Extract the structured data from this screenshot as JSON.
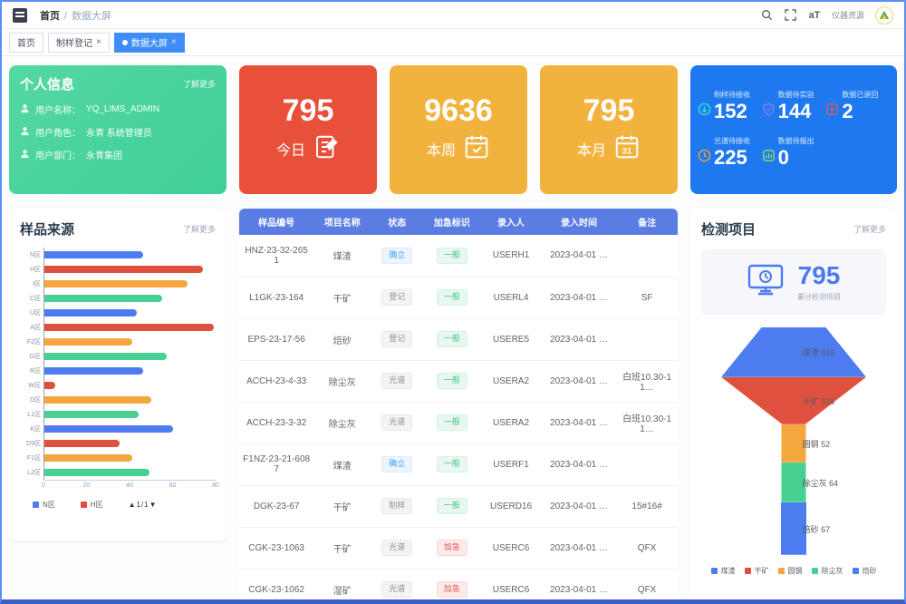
{
  "header": {
    "breadcrumb": {
      "root": "首页",
      "separator": "/",
      "current": "数据大屏"
    },
    "icons": [
      "menu-icon",
      "search-icon",
      "fullscreen-icon",
      "font-size-icon",
      "avatar-logo"
    ],
    "font_size_glyph": "aT",
    "right_text": "仪器资源"
  },
  "tabs": [
    {
      "label": "首页",
      "active": false,
      "closable": false
    },
    {
      "label": "制样登记",
      "active": false,
      "closable": true
    },
    {
      "label": "数据大屏",
      "active": true,
      "closable": true
    }
  ],
  "profile_card": {
    "title": "个人信息",
    "more": "了解更多",
    "items": [
      {
        "icon": "user-icon",
        "label": "用户名称",
        "sep": "：",
        "value": "YQ_LIMS_ADMIN"
      },
      {
        "icon": "role-icon",
        "label": "用户角色",
        "sep": "：",
        "value": "永青 系统管理员"
      },
      {
        "icon": "dept-icon",
        "label": "用户部门",
        "sep": "：",
        "value": "永青集团"
      }
    ]
  },
  "summary_cards": [
    {
      "value": "795",
      "label": "今日",
      "color": "#e8503a",
      "icon": "edit-note-icon"
    },
    {
      "value": "9636",
      "label": "本周",
      "color": "#f2b23e",
      "icon": "calendar-check-icon"
    },
    {
      "value": "795",
      "label": "本月",
      "color": "#f2b23e",
      "icon": "calendar-31-icon"
    }
  ],
  "stats_panel": {
    "bg_color": "#1e79f0",
    "items": [
      {
        "label": "制样待接收",
        "value": "152",
        "icon": "receive-circle-icon",
        "icon_color": "#35e0c8"
      },
      {
        "label": "数据待实验",
        "value": "144",
        "icon": "shield-icon",
        "icon_color": "#8a7af0"
      },
      {
        "label": "数据已退回",
        "value": "2",
        "icon": "return-square-icon",
        "icon_color": "#e05a5a"
      },
      {
        "label": "光谱待接收",
        "value": "225",
        "icon": "clock-icon",
        "icon_color": "#f0a23c"
      },
      {
        "label": "数据待报出",
        "value": "0",
        "icon": "report-chart-icon",
        "icon_color": "#8fdc5f"
      }
    ]
  },
  "sample_source": {
    "title": "样品来源",
    "more": "了解更多"
  },
  "test_projects": {
    "title": "检测项目",
    "more": "了解更多",
    "total": "795",
    "total_label": "累计检测项目",
    "monitor_icon": "monitor-clock-icon"
  },
  "chart_data": [
    {
      "type": "bar",
      "orientation": "horizontal",
      "title": "样品来源",
      "categories": [
        "N区",
        "H区",
        "I区",
        "C区",
        "U区",
        "A区",
        "F2区",
        "G区",
        "R区",
        "W区",
        "D区",
        "L1区",
        "K区",
        "D9区",
        "F1区",
        "L2区"
      ],
      "values": [
        46,
        74,
        67,
        55,
        43,
        79,
        41,
        57,
        46,
        5,
        50,
        44,
        60,
        35,
        41,
        49
      ],
      "xlim": [
        0,
        80
      ],
      "xticks": [
        0,
        20,
        40,
        60,
        80
      ],
      "bar_colors": [
        "#4d7cf0",
        "#e0503e",
        "#f5a73d",
        "#47d092"
      ],
      "legend": [
        {
          "label": "N区",
          "color": "#4d7cf0"
        },
        {
          "label": "H区",
          "color": "#e0503e"
        }
      ],
      "pager": "▲1/1▼",
      "grid": false,
      "legend_position": "bottom"
    },
    {
      "type": "funnel",
      "title": "检测项目",
      "categories": [
        "煤渣",
        "干矿",
        "圆钢",
        "除尘灰",
        "焙砂"
      ],
      "values": [
        916,
        376,
        52,
        64,
        67
      ],
      "colors": [
        "#4d7cf0",
        "#e0503e",
        "#f5a73d",
        "#47d092",
        "#4d7cf0"
      ],
      "legend_position": "bottom"
    }
  ],
  "table": {
    "headers": [
      "样品编号",
      "项目名称",
      "状态",
      "加急标识",
      "录入人",
      "录入时间",
      "备注"
    ],
    "rows": [
      {
        "code": "HNZ-23-32-2651",
        "name": "煤渣",
        "status": {
          "text": "确立",
          "type": "primary"
        },
        "urgent": {
          "text": "一般",
          "type": "success"
        },
        "user": "USERH1",
        "time": "2023-04-01 …",
        "remark": ""
      },
      {
        "code": "L1GK-23-164",
        "name": "干矿",
        "status": {
          "text": "登记",
          "type": "default"
        },
        "urgent": {
          "text": "一般",
          "type": "success"
        },
        "user": "USERL4",
        "time": "2023-04-01 …",
        "remark": "SF"
      },
      {
        "code": "EPS-23-17-56",
        "name": "焙砂",
        "status": {
          "text": "登记",
          "type": "default"
        },
        "urgent": {
          "text": "一般",
          "type": "success"
        },
        "user": "USERE5",
        "time": "2023-04-01 …",
        "remark": ""
      },
      {
        "code": "ACCH-23-4-33",
        "name": "除尘灰",
        "status": {
          "text": "光谱",
          "type": "default"
        },
        "urgent": {
          "text": "一般",
          "type": "success"
        },
        "user": "USERA2",
        "time": "2023-04-01 …",
        "remark": "白班10.30-11…"
      },
      {
        "code": "ACCH-23-3-32",
        "name": "除尘灰",
        "status": {
          "text": "光谱",
          "type": "default"
        },
        "urgent": {
          "text": "一般",
          "type": "success"
        },
        "user": "USERA2",
        "time": "2023-04-01 …",
        "remark": "白班10.30-11…"
      },
      {
        "code": "F1NZ-23-21-6087",
        "name": "煤渣",
        "status": {
          "text": "确立",
          "type": "primary"
        },
        "urgent": {
          "text": "一般",
          "type": "success"
        },
        "user": "USERF1",
        "time": "2023-04-01 …",
        "remark": ""
      },
      {
        "code": "DGK-23-67",
        "name": "干矿",
        "status": {
          "text": "制样",
          "type": "default"
        },
        "urgent": {
          "text": "一般",
          "type": "success"
        },
        "user": "USERD16",
        "time": "2023-04-01 …",
        "remark": "15#16#"
      },
      {
        "code": "CGK-23-1063",
        "name": "干矿",
        "status": {
          "text": "光谱",
          "type": "default"
        },
        "urgent": {
          "text": "加急",
          "type": "danger"
        },
        "user": "USERC6",
        "time": "2023-04-01 …",
        "remark": "QFX"
      },
      {
        "code": "CGK-23-1062",
        "name": "湿矿",
        "status": {
          "text": "光谱",
          "type": "default"
        },
        "urgent": {
          "text": "加急",
          "type": "danger"
        },
        "user": "USERC6",
        "time": "2023-04-01 …",
        "remark": "QFX"
      }
    ]
  }
}
